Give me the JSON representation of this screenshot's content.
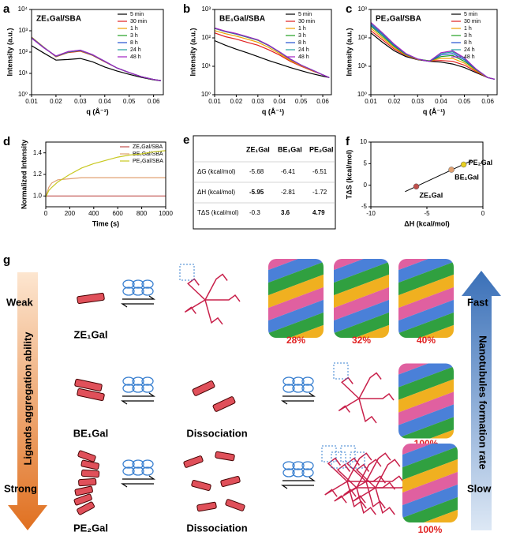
{
  "chart_data": [
    {
      "type": "line",
      "panel_label": "a",
      "title": "ZE₁Gal/SBA",
      "xlabel": "q (Å⁻¹)",
      "ylabel": "Intensity (a.u.)",
      "log_y": true,
      "legend": "upper right",
      "x": [
        0.01,
        0.015,
        0.02,
        0.025,
        0.03,
        0.035,
        0.04,
        0.045,
        0.05,
        0.055,
        0.06,
        0.063
      ],
      "xlim": [
        0.01,
        0.064
      ],
      "xticks": [
        0.01,
        0.02,
        0.03,
        0.04,
        0.05,
        0.06
      ],
      "ylim": [
        1,
        10000
      ],
      "yticks": [
        {
          "value": 1,
          "label": "10⁰"
        },
        {
          "value": 10,
          "label": "10¹"
        },
        {
          "value": 100,
          "label": "10²"
        },
        {
          "value": 1000,
          "label": "10³"
        },
        {
          "value": 10000,
          "label": "10⁴"
        }
      ],
      "series": [
        {
          "name": "5 min",
          "color": "#000000",
          "values": [
            200,
            90,
            42,
            45,
            50,
            35,
            20,
            13,
            9,
            6.5,
            5,
            4.5
          ]
        },
        {
          "name": "30 min",
          "color": "#e02020",
          "values": [
            500,
            170,
            60,
            95,
            110,
            70,
            35,
            18,
            11,
            7,
            5.2,
            4.6
          ]
        },
        {
          "name": "1 h",
          "color": "#f0a000",
          "values": [
            490,
            168,
            62,
            98,
            115,
            72,
            36,
            18,
            11,
            7,
            5.2,
            4.6
          ]
        },
        {
          "name": "3 h",
          "color": "#20a020",
          "values": [
            480,
            165,
            63,
            100,
            118,
            73,
            36,
            18,
            11,
            7,
            5.2,
            4.6
          ]
        },
        {
          "name": "8 h",
          "color": "#2050d0",
          "values": [
            470,
            163,
            64,
            102,
            120,
            74,
            37,
            18,
            11,
            7,
            5.2,
            4.6
          ]
        },
        {
          "name": "24 h",
          "color": "#20a0a0",
          "values": [
            460,
            160,
            65,
            104,
            122,
            75,
            37,
            18,
            11,
            7,
            5.2,
            4.6
          ]
        },
        {
          "name": "48 h",
          "color": "#a020c0",
          "values": [
            450,
            158,
            66,
            105,
            124,
            76,
            37,
            18,
            11,
            7,
            5.2,
            4.6
          ]
        }
      ]
    },
    {
      "type": "line",
      "panel_label": "b",
      "title": "BE₁Gal/SBA",
      "xlabel": "q (Å⁻¹)",
      "ylabel": "Intensity (a.u.)",
      "log_y": true,
      "legend": "upper right",
      "x": [
        0.01,
        0.015,
        0.02,
        0.025,
        0.03,
        0.035,
        0.04,
        0.045,
        0.05,
        0.055,
        0.06,
        0.063
      ],
      "xlim": [
        0.01,
        0.064
      ],
      "xticks": [
        0.01,
        0.02,
        0.03,
        0.04,
        0.05,
        0.06
      ],
      "ylim": [
        1,
        1000
      ],
      "yticks": [
        {
          "value": 1,
          "label": "10⁰"
        },
        {
          "value": 10,
          "label": "10¹"
        },
        {
          "value": 100,
          "label": "10²"
        },
        {
          "value": 1000,
          "label": "10³"
        }
      ],
      "series": [
        {
          "name": "5 min",
          "color": "#000000",
          "values": [
            80,
            55,
            40,
            30,
            22,
            16,
            12,
            9,
            7,
            5.5,
            4.5,
            4
          ]
        },
        {
          "name": "30 min",
          "color": "#e02020",
          "values": [
            150,
            110,
            90,
            70,
            55,
            38,
            25,
            15,
            10,
            7,
            5,
            4
          ]
        },
        {
          "name": "1 h",
          "color": "#f0a000",
          "values": [
            180,
            140,
            115,
            90,
            70,
            46,
            28,
            16,
            10.5,
            7.2,
            5,
            4
          ]
        },
        {
          "name": "3 h",
          "color": "#20a020",
          "values": [
            215,
            165,
            135,
            105,
            82,
            53,
            31,
            17.5,
            11,
            7.4,
            5,
            4
          ]
        },
        {
          "name": "8 h",
          "color": "#2050d0",
          "values": [
            218,
            168,
            138,
            108,
            84,
            54,
            32,
            18,
            11,
            7.5,
            5,
            4
          ]
        },
        {
          "name": "24 h",
          "color": "#20a0a0",
          "values": [
            220,
            170,
            140,
            110,
            85,
            55,
            32,
            18,
            11,
            7.5,
            5,
            4
          ]
        },
        {
          "name": "48 h",
          "color": "#a020c0",
          "values": [
            222,
            172,
            142,
            111,
            86,
            55,
            32,
            18,
            11,
            7.5,
            5,
            4
          ]
        }
      ]
    },
    {
      "type": "line",
      "panel_label": "c",
      "title": "PE₂Gal/SBA",
      "xlabel": "q (Å⁻¹)",
      "ylabel": "Intensity (a.u.)",
      "log_y": true,
      "legend": "upper right",
      "x": [
        0.01,
        0.015,
        0.02,
        0.025,
        0.03,
        0.035,
        0.04,
        0.045,
        0.05,
        0.055,
        0.06,
        0.063
      ],
      "xlim": [
        0.01,
        0.064
      ],
      "xticks": [
        0.01,
        0.02,
        0.03,
        0.04,
        0.05,
        0.06
      ],
      "ylim": [
        1,
        1000
      ],
      "yticks": [
        {
          "value": 1,
          "label": "10⁰"
        },
        {
          "value": 10,
          "label": "10¹"
        },
        {
          "value": 100,
          "label": "10²"
        },
        {
          "value": 1000,
          "label": "10³"
        }
      ],
      "series": [
        {
          "name": "5 min",
          "color": "#000000",
          "values": [
            150,
            70,
            35,
            22,
            17,
            15,
            14,
            12,
            9,
            6,
            4,
            3.5
          ]
        },
        {
          "name": "30 min",
          "color": "#e02020",
          "values": [
            180,
            85,
            40,
            24,
            17.5,
            15.5,
            16,
            15,
            11,
            6.5,
            4,
            3.5
          ]
        },
        {
          "name": "1 h",
          "color": "#f0a000",
          "values": [
            220,
            100,
            45,
            25,
            17.5,
            15.5,
            19,
            19,
            13,
            7,
            4,
            3.5
          ]
        },
        {
          "name": "3 h",
          "color": "#20a020",
          "values": [
            260,
            115,
            50,
            26,
            18,
            15.5,
            22,
            24,
            15,
            7.5,
            4,
            3.5
          ]
        },
        {
          "name": "8 h",
          "color": "#2050d0",
          "values": [
            290,
            130,
            54,
            27,
            18,
            15,
            25,
            28,
            17,
            7.8,
            4,
            3.5
          ]
        },
        {
          "name": "24 h",
          "color": "#20a0a0",
          "values": [
            320,
            140,
            57,
            27.5,
            18,
            15,
            28,
            32,
            19,
            8,
            4,
            3.5
          ]
        },
        {
          "name": "48 h",
          "color": "#a020c0",
          "values": [
            350,
            150,
            60,
            28,
            18,
            15,
            30,
            35,
            20,
            8,
            4,
            3.5
          ]
        }
      ]
    },
    {
      "type": "line",
      "panel_label": "d",
      "xlabel": "Time (s)",
      "ylabel": "Normalized Intensity",
      "log_y": false,
      "legend": "upper right",
      "x": [
        0,
        25,
        50,
        100,
        200,
        300,
        400,
        500,
        600,
        700,
        800,
        900,
        1000
      ],
      "xlim": [
        0,
        1000
      ],
      "xticks": [
        0,
        200,
        400,
        600,
        800,
        1000
      ],
      "ylim": [
        0.9,
        1.5
      ],
      "yticks": [
        {
          "value": 1,
          "label": "1.0"
        },
        {
          "value": 1.2,
          "label": "1.2"
        },
        {
          "value": 1.4,
          "label": "1.4"
        }
      ],
      "series": [
        {
          "name": "ZE₁Gal/SBA",
          "color": "#c0504d",
          "values": [
            1,
            1,
            1,
            1,
            1,
            1,
            1,
            1,
            1,
            1,
            1,
            1,
            1
          ]
        },
        {
          "name": "BE₁Gal/SBA",
          "color": "#e0a070",
          "values": [
            0.99,
            1.08,
            1.12,
            1.15,
            1.16,
            1.17,
            1.17,
            1.17,
            1.17,
            1.17,
            1.17,
            1.17,
            1.17
          ]
        },
        {
          "name": "PE₂Gal/SBA",
          "color": "#c8c820",
          "values": [
            0.99,
            1.05,
            1.08,
            1.13,
            1.2,
            1.26,
            1.3,
            1.33,
            1.36,
            1.38,
            1.39,
            1.41,
            1.42
          ]
        }
      ]
    },
    {
      "type": "scatter",
      "panel_label": "f",
      "xlabel": "ΔH (kcal/mol)",
      "ylabel": "TΔS (kcal/mol)",
      "trendline": true,
      "xlim": [
        -10,
        0
      ],
      "xticks": [
        -10,
        -5,
        0
      ],
      "ylim": [
        -5,
        10
      ],
      "yticks": [
        -5,
        0,
        5,
        10
      ],
      "x": [
        -5.95,
        -2.81,
        -1.72
      ],
      "values": [
        -0.3,
        3.6,
        4.79
      ],
      "labels": [
        "ZE₁Gal",
        "BE₁Gal",
        "PE₂Gal"
      ],
      "colors": [
        "#c0504d",
        "#e0a070",
        "#e8d020"
      ]
    }
  ],
  "table": {
    "panel_label": "e",
    "columns": [
      "ZE₁Gal",
      "BE₁Gal",
      "PE₂Gal"
    ],
    "rows": [
      [
        "ΔG (kcal/mol)",
        "-5.68",
        "-6.41",
        "-6.51"
      ],
      [
        "ΔH (kcal/mol)",
        "-5.95",
        "-2.81",
        "-1.72"
      ],
      [
        "TΔS (kcal/mol)",
        "-0.3",
        "3.6",
        "4.79"
      ]
    ],
    "highlight_color": "#e02020",
    "highlighted": [
      [
        1,
        1
      ],
      [
        2,
        2
      ],
      [
        2,
        3
      ]
    ]
  },
  "diagram": {
    "panel_label": "g",
    "left_top": "Weak",
    "left_bottom": "Strong",
    "left_axis": "Ligands aggregation ability",
    "right_top": "Fast",
    "right_bottom": "Slow",
    "right_axis": "Nanotubules formation rate",
    "rows": [
      {
        "ligand": "ZE₁Gal",
        "percentages": [
          "28%",
          "32%",
          "40%"
        ]
      },
      {
        "ligand": "BE₁Gal",
        "state": "Dissociation",
        "percentages": [
          "100%"
        ]
      },
      {
        "ligand": "PE₂Gal",
        "state": "Dissociation",
        "percentages": [
          "100%"
        ]
      }
    ]
  }
}
